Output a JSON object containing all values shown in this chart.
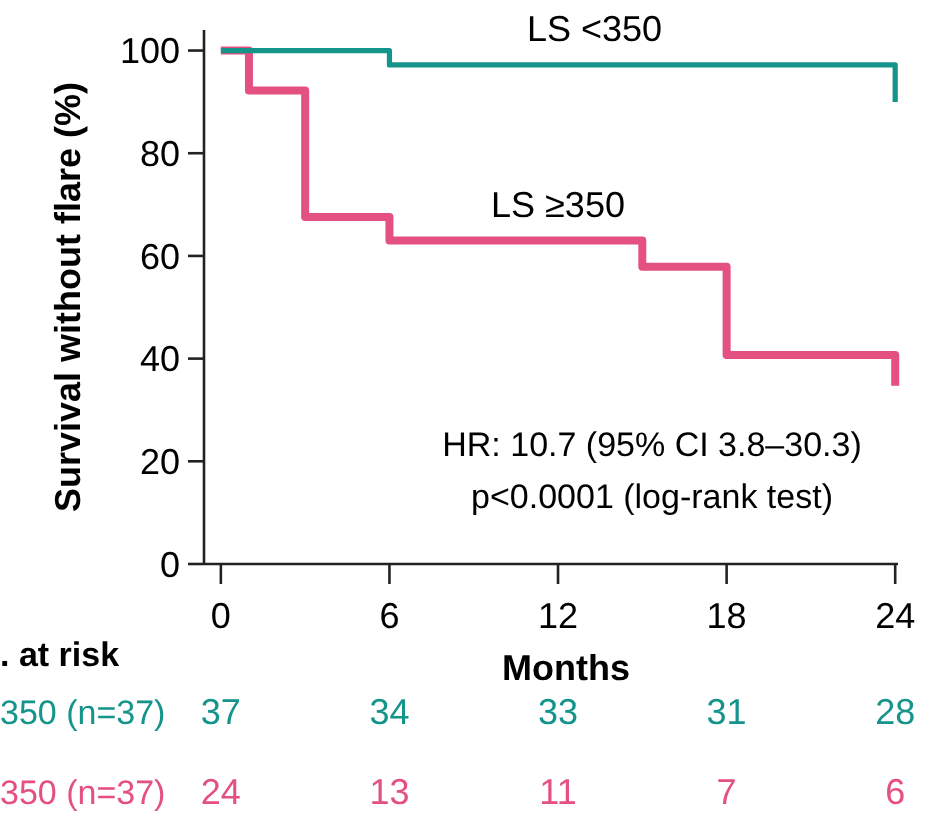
{
  "chart_data": {
    "type": "step",
    "xlabel": "Months",
    "ylabel": "Survival without flare (%)",
    "xlim": [
      -0.6,
      24.1
    ],
    "ylim": [
      0,
      104
    ],
    "xticks": [
      0,
      6,
      12,
      18,
      24
    ],
    "yticks": [
      0,
      20,
      40,
      60,
      80,
      100
    ],
    "grid": false,
    "series": [
      {
        "name": "LS <350",
        "color": "#14948a",
        "x": [
          0,
          6,
          24
        ],
        "values": [
          100,
          97.2,
          90
        ]
      },
      {
        "name": "LS ≥350",
        "color": "#e4507f",
        "x": [
          0,
          1,
          3,
          6,
          15,
          18,
          24
        ],
        "values": [
          100,
          92.2,
          67.6,
          63,
          57.9,
          40.7,
          34.7
        ]
      }
    ],
    "annotations": [
      "HR: 10.7 (95% CI 3.8–30.3)",
      "p<0.0001 (log-rank test)",
      ". at risk",
      "350 (n=37)",
      "37",
      "34",
      "33",
      "31",
      "28",
      "350 (n=37)",
      "24",
      "13",
      "11",
      "7",
      "6"
    ]
  }
}
